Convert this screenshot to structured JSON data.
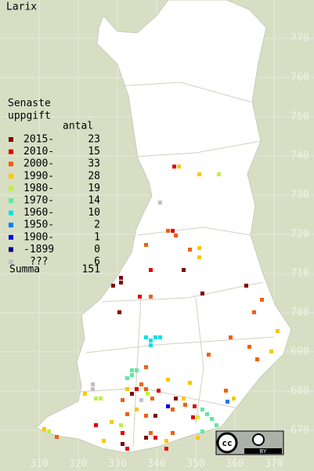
{
  "title": "Larix",
  "legend": {
    "heading": [
      "Senaste",
      "uppgift"
    ],
    "count_heading": "antal",
    "rows": [
      {
        "label": "2015-",
        "count": 23,
        "color": "#800000"
      },
      {
        "label": "2010-",
        "count": 15,
        "color": "#e00000"
      },
      {
        "label": "2000-",
        "count": 33,
        "color": "#f06010"
      },
      {
        "label": "1990-",
        "count": 28,
        "color": "#f8c800"
      },
      {
        "label": "1980-",
        "count": 19,
        "color": "#c0f040"
      },
      {
        "label": "1970-",
        "count": 14,
        "color": "#60e8a0"
      },
      {
        "label": "1960-",
        "count": 10,
        "color": "#00e0e8"
      },
      {
        "label": "1950-",
        "count": 2,
        "color": "#0080f0"
      },
      {
        "label": "1900-",
        "count": 1,
        "color": "#0000e0"
      },
      {
        "label": "-1899",
        "count": 0,
        "color": "#000080"
      },
      {
        "label": "???",
        "count": 6,
        "color": "#c0c0c0"
      }
    ],
    "total_label": "Summa",
    "total": 151
  },
  "xticks": [
    310,
    320,
    330,
    340,
    350,
    360,
    370
  ],
  "yticks": [
    670,
    680,
    690,
    700,
    710,
    720,
    730,
    740,
    750,
    760,
    770
  ],
  "badge": {
    "cc": "cc",
    "by": "BY"
  }
}
